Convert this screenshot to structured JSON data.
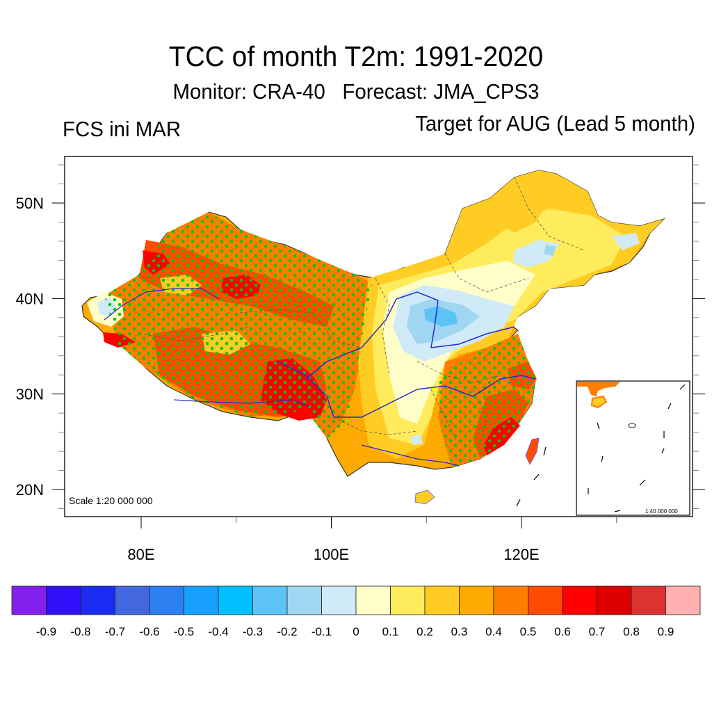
{
  "header": {
    "title": "TCC of month T2m: 1991-2020",
    "subtitle": "Monitor: CRA-40   Forecast: JMA_CPS3",
    "left_string": "FCS ini MAR",
    "right_string": "Target for AUG (Lead 5 month)"
  },
  "map": {
    "scale_label": "Scale 1:20 000 000",
    "inset_scale_label": "1:40 000 000",
    "lon_range": [
      72,
      136
    ],
    "lat_range": [
      17,
      55
    ],
    "lon_ticks": [
      {
        "value": 80,
        "label": "80E"
      },
      {
        "value": 100,
        "label": "100E"
      },
      {
        "value": 120,
        "label": "120E"
      }
    ],
    "lat_ticks": [
      {
        "value": 20,
        "label": "20N"
      },
      {
        "value": 30,
        "label": "30N"
      },
      {
        "value": 40,
        "label": "40N"
      },
      {
        "value": 50,
        "label": "50N"
      }
    ],
    "stipple_color": "#00c800",
    "river_color": "#2828c8",
    "border_color": "#505050",
    "regions": [
      {
        "name": "xinjiang-north",
        "level": 0.5
      },
      {
        "name": "xinjiang-red-north",
        "level": 0.6
      },
      {
        "name": "tarim-east-red",
        "level": 0.6
      },
      {
        "name": "western-edge-blue",
        "level": -0.1
      },
      {
        "name": "tibet",
        "level": 0.4
      },
      {
        "name": "southeast-tibet-red",
        "level": 0.6
      },
      {
        "name": "north-china-blue",
        "level": -0.2
      },
      {
        "name": "north-china-core",
        "level": -0.3
      },
      {
        "name": "northeast-china",
        "level": 0.2
      },
      {
        "name": "northeast-blue",
        "level": -0.1
      },
      {
        "name": "central-china",
        "level": 0.1
      },
      {
        "name": "southeast-china",
        "level": 0.4
      },
      {
        "name": "fujian-coast-red",
        "level": 0.6
      },
      {
        "name": "taiwan",
        "level": 0.5
      },
      {
        "name": "hainan",
        "level": 0.3
      }
    ]
  },
  "colorbar": {
    "colors": [
      "#8420ee",
      "#3010f8",
      "#1a2cf2",
      "#4468e0",
      "#2c80f0",
      "#18a0ff",
      "#00c0ff",
      "#5cc4f4",
      "#a0d6f2",
      "#d0eaf8",
      "#fffec8",
      "#ffec5c",
      "#ffcc24",
      "#ffaa00",
      "#ff7e00",
      "#ff4c00",
      "#ff0000",
      "#dc0000",
      "#dc3232",
      "#ffb0b0"
    ],
    "labels": [
      "-0.9",
      "-0.8",
      "-0.7",
      "-0.6",
      "-0.5",
      "-0.4",
      "-0.3",
      "-0.2",
      "-0.1",
      "0",
      "0.1",
      "0.2",
      "0.3",
      "0.4",
      "0.5",
      "0.6",
      "0.7",
      "0.8",
      "0.9"
    ]
  }
}
